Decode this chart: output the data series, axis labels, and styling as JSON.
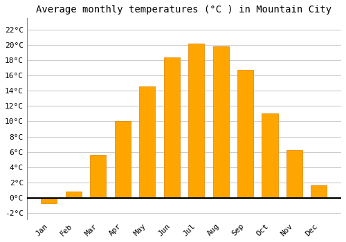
{
  "title": "Average monthly temperatures (°C ) in Mountain City",
  "months": [
    "Jan",
    "Feb",
    "Mar",
    "Apr",
    "May",
    "Jun",
    "Jul",
    "Aug",
    "Sep",
    "Oct",
    "Nov",
    "Dec"
  ],
  "values": [
    -0.7,
    0.8,
    5.6,
    10.0,
    14.6,
    18.4,
    20.2,
    19.8,
    16.7,
    11.0,
    6.2,
    1.6
  ],
  "bar_color": "#FFA500",
  "bar_edge_color": "#E08000",
  "background_color": "#FFFFFF",
  "plot_bg_color": "#FFFFFF",
  "grid_color": "#CCCCCC",
  "ytick_labels": [
    "-2°C",
    "0°C",
    "2°C",
    "4°C",
    "6°C",
    "8°C",
    "10°C",
    "12°C",
    "14°C",
    "16°C",
    "18°C",
    "20°C",
    "22°C"
  ],
  "ytick_values": [
    -2,
    0,
    2,
    4,
    6,
    8,
    10,
    12,
    14,
    16,
    18,
    20,
    22
  ],
  "ylim": [
    -2.8,
    23.5
  ],
  "title_fontsize": 10,
  "tick_fontsize": 8,
  "font_family": "monospace",
  "bar_width": 0.65
}
